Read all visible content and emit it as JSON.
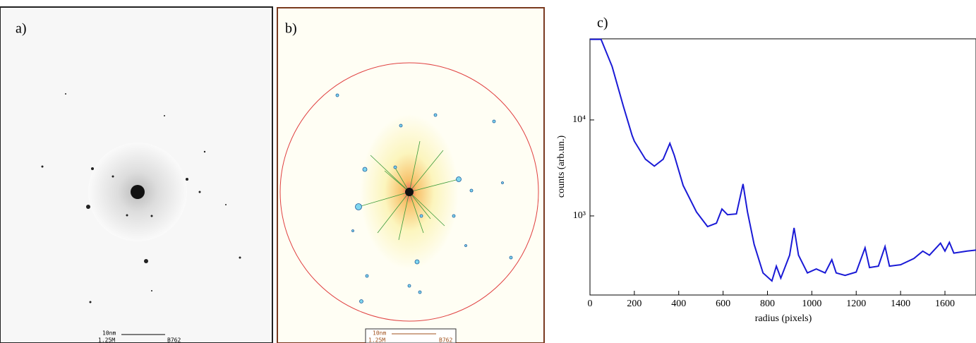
{
  "panels": {
    "a": {
      "label": "a)",
      "scale_bar": "10nm",
      "magnification": "1.25M",
      "id": "B762"
    },
    "b": {
      "label": "b)",
      "scale_bar": "10nm",
      "magnification": "1.25M",
      "id": "B762"
    }
  },
  "chart_data": {
    "type": "line",
    "title": "c)",
    "x_label": "radius (pixels)",
    "y_label": "counts (arb.un.)",
    "log_y": true,
    "xlim": [
      0,
      1740
    ],
    "ylim": [
      150,
      70000
    ],
    "xticks": [
      0,
      200,
      400,
      600,
      800,
      1000,
      1200,
      1400,
      1600
    ],
    "yticks": [
      {
        "value": 1000,
        "label": "10³"
      },
      {
        "value": 10000,
        "label": "10⁴"
      }
    ],
    "series": [
      {
        "color": "#1a1ad6",
        "x": [
          0,
          50,
          100,
          150,
          190,
          200,
          250,
          290,
          330,
          360,
          380,
          420,
          480,
          530,
          570,
          595,
          620,
          660,
          690,
          710,
          740,
          780,
          820,
          840,
          860,
          900,
          920,
          940,
          980,
          1020,
          1060,
          1090,
          1110,
          1150,
          1200,
          1240,
          1260,
          1300,
          1330,
          1350,
          1400,
          1460,
          1500,
          1530,
          1580,
          1600,
          1620,
          1640,
          1700,
          1740
        ],
        "values": [
          69000,
          69000,
          36000,
          14000,
          6900,
          6000,
          3900,
          3300,
          3900,
          5700,
          4270,
          2080,
          1100,
          775,
          840,
          1180,
          1030,
          1050,
          2150,
          1100,
          506,
          255,
          210,
          300,
          225,
          390,
          750,
          390,
          255,
          280,
          255,
          350,
          255,
          240,
          260,
          465,
          290,
          300,
          480,
          300,
          310,
          360,
          430,
          390,
          520,
          430,
          530,
          410,
          430,
          440
        ]
      }
    ]
  }
}
